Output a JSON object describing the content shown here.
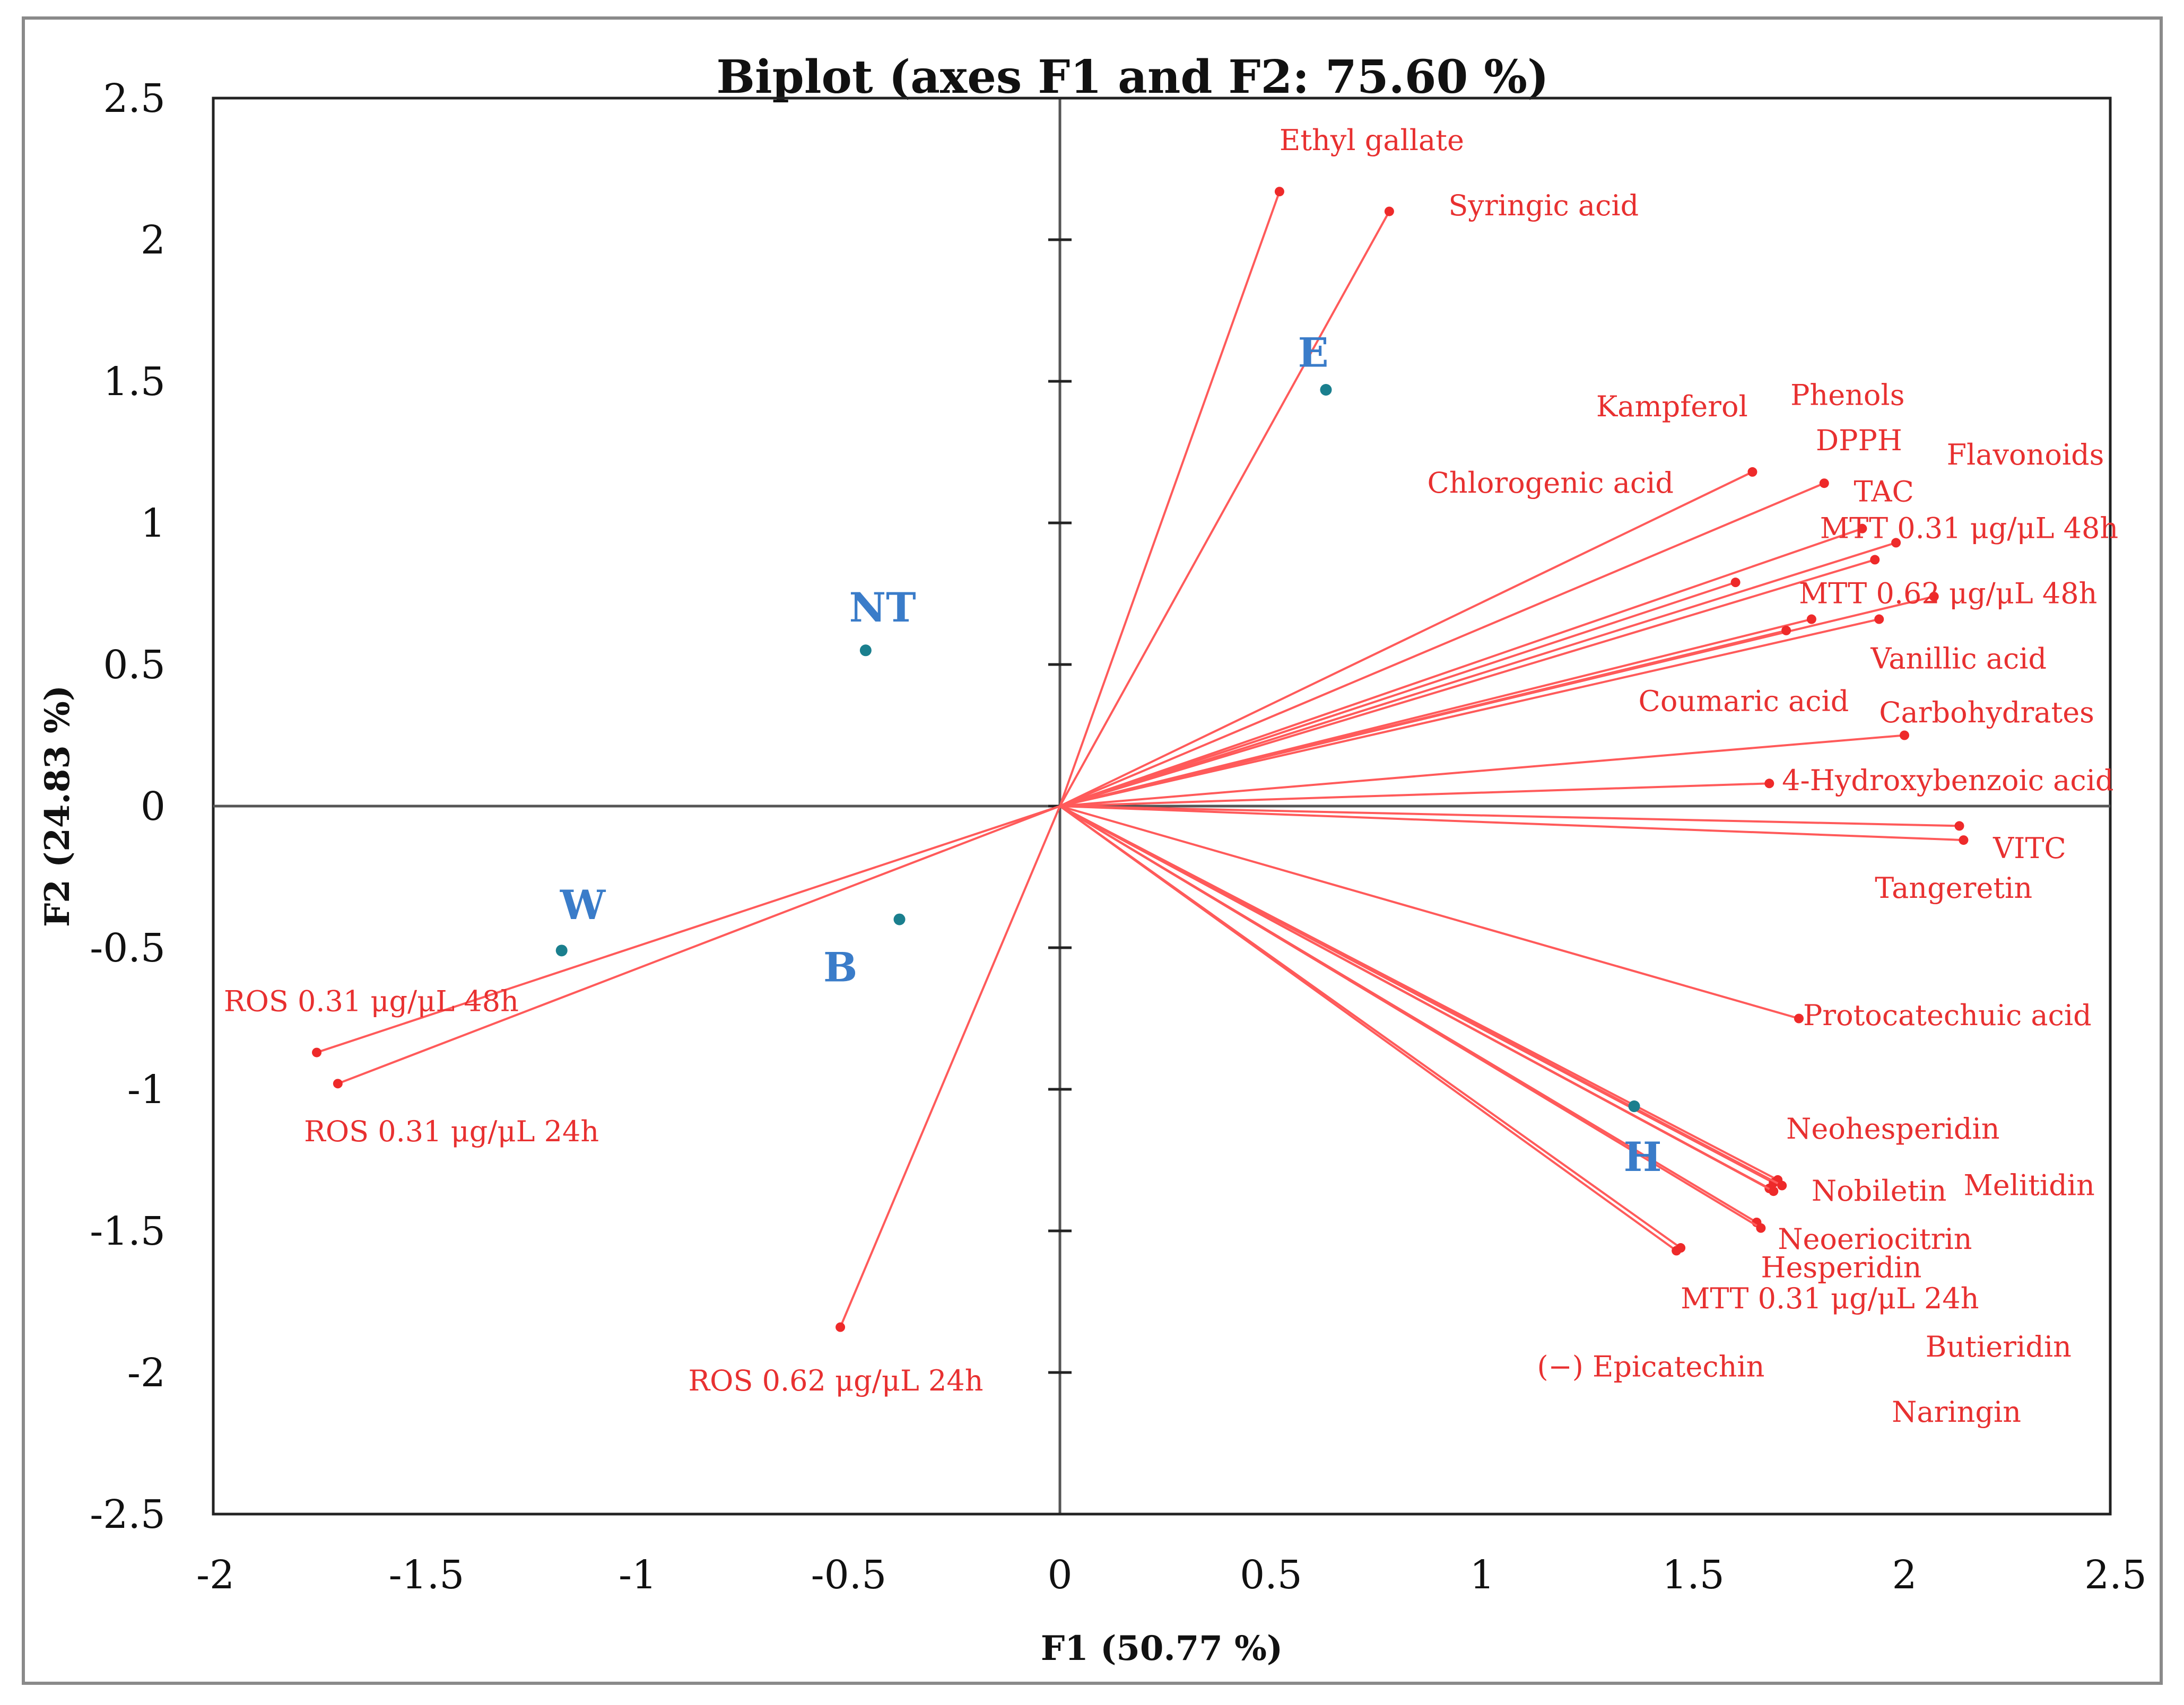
{
  "chart_data": {
    "type": "scatter",
    "subtype": "pca-biplot",
    "title": "Biplot (axes F1 and F2: 75.60 %)",
    "xlabel": "F1 (50.77 %)",
    "ylabel": "F2 (24.83 %)",
    "xlim": [
      -2,
      2.5
    ],
    "ylim": [
      -2.5,
      2.5
    ],
    "x_ticks": [
      "-2",
      "-1.5",
      "-1",
      "-0.5",
      "0",
      "0.5",
      "1",
      "1.5",
      "2",
      "2.5"
    ],
    "y_ticks": [
      "2.5",
      "2",
      "1.5",
      "1",
      "0.5",
      "0",
      "-0.5",
      "-1",
      "-1.5",
      "-2",
      "-2.5"
    ],
    "grid": false,
    "colors": {
      "variables": "#ee2a2a",
      "observations": "#1a7f8e",
      "observation_labels": "#3a7cc9"
    },
    "variables": [
      {
        "label": "Ethyl gallate",
        "x": 0.52,
        "y": 2.17
      },
      {
        "label": "Syringic acid",
        "x": 0.78,
        "y": 2.1
      },
      {
        "label": "Kampferol",
        "x": 1.64,
        "y": 1.18
      },
      {
        "label": "Phenols",
        "x": 1.81,
        "y": 1.14
      },
      {
        "label": "DPPH",
        "x": 1.9,
        "y": 0.98
      },
      {
        "label": "Flavonoids",
        "x": 1.98,
        "y": 0.93
      },
      {
        "label": "Chlorogenic acid",
        "x": 1.6,
        "y": 0.79
      },
      {
        "label": "TAC",
        "x": 1.93,
        "y": 0.87
      },
      {
        "label": "MTT 0.31 μg/μL 48h",
        "x": 2.07,
        "y": 0.74
      },
      {
        "label": "MTT 0.62 μg/μL 48h",
        "x": 1.94,
        "y": 0.66
      },
      {
        "label": "Vanillic acid",
        "x": 1.78,
        "y": 0.66
      },
      {
        "label": "Coumaric acid",
        "x": 1.72,
        "y": 0.62
      },
      {
        "label": "Carbohydrates",
        "x": 2.0,
        "y": 0.25
      },
      {
        "label": "4-Hydroxybenzoic acid",
        "x": 1.68,
        "y": 0.08
      },
      {
        "label": "VITC",
        "x": 2.13,
        "y": -0.07
      },
      {
        "label": "Tangeretin",
        "x": 2.14,
        "y": -0.12
      },
      {
        "label": "Protocatechuic acid",
        "x": 1.75,
        "y": -0.75
      },
      {
        "label": "Neohesperidin",
        "x": 1.7,
        "y": -1.32
      },
      {
        "label": "Nobiletin",
        "x": 1.69,
        "y": -1.33
      },
      {
        "label": "Melitidin",
        "x": 1.71,
        "y": -1.34
      },
      {
        "label": "Neoeriocitrin",
        "x": 1.65,
        "y": -1.47
      },
      {
        "label": "Hesperidin",
        "x": 1.66,
        "y": -1.49
      },
      {
        "label": "MTT 0.31 μg/μL 24h",
        "x": 1.46,
        "y": -1.57
      },
      {
        "label": "(−) Epicatechin",
        "x": 1.47,
        "y": -1.56
      },
      {
        "label": "Butieridin",
        "x": 1.68,
        "y": -1.35
      },
      {
        "label": "Naringin",
        "x": 1.69,
        "y": -1.36
      },
      {
        "label": "ROS 0.31 μg/μL 48h",
        "x": -1.76,
        "y": -0.87
      },
      {
        "label": "ROS 0.31 μg/μL 24h",
        "x": -1.71,
        "y": -0.98
      },
      {
        "label": "ROS 0.62 μg/μL 24h",
        "x": -0.52,
        "y": -1.84
      }
    ],
    "observations": [
      {
        "label": "E",
        "x": 0.63,
        "y": 1.47
      },
      {
        "label": "NT",
        "x": -0.46,
        "y": 0.55
      },
      {
        "label": "W",
        "x": -1.18,
        "y": -0.51
      },
      {
        "label": "B",
        "x": -0.38,
        "y": -0.4
      },
      {
        "label": "H",
        "x": 1.36,
        "y": -1.06
      }
    ]
  }
}
